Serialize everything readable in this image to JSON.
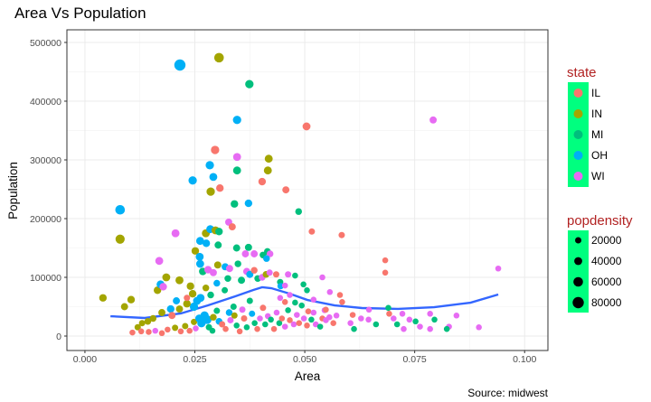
{
  "chart_data": {
    "type": "scatter",
    "title": "Area Vs Population",
    "caption": "Source: midwest",
    "xlabel": "Area",
    "ylabel": "Population",
    "xlim": [
      -0.0041,
      0.1053
    ],
    "ylim": [
      -24600,
      521500
    ],
    "xticks": [
      "0.000",
      "0.025",
      "0.050",
      "0.075",
      "0.100"
    ],
    "xtick_values": [
      0,
      0.025,
      0.05,
      0.075,
      0.1
    ],
    "yticks": [
      "0",
      "100000",
      "200000",
      "300000",
      "400000",
      "500000"
    ],
    "ytick_values": [
      0,
      100000,
      200000,
      300000,
      400000,
      500000
    ],
    "grid": true,
    "legend_position": "right",
    "color_legend": {
      "title": "state",
      "items": [
        {
          "label": "IL",
          "color": "#F8766D"
        },
        {
          "label": "IN",
          "color": "#A3A500"
        },
        {
          "label": "MI",
          "color": "#00BF7D"
        },
        {
          "label": "OH",
          "color": "#00B0F6"
        },
        {
          "label": "WI",
          "color": "#E76BF3"
        }
      ]
    },
    "size_legend": {
      "title": "popdensity",
      "items": [
        "20000",
        "40000",
        "60000",
        "80000"
      ],
      "values": [
        20000,
        40000,
        60000,
        80000
      ]
    },
    "legend_background": "#00FF7F",
    "smooth_color": "#3366FF",
    "smooth": [
      [
        0.0058,
        33800
      ],
      [
        0.0136,
        30800
      ],
      [
        0.0218,
        38500
      ],
      [
        0.028,
        52300
      ],
      [
        0.0342,
        67700
      ],
      [
        0.0383,
        78500
      ],
      [
        0.0403,
        83100
      ],
      [
        0.0424,
        81500
      ],
      [
        0.0465,
        72300
      ],
      [
        0.0506,
        61500
      ],
      [
        0.0568,
        52300
      ],
      [
        0.063,
        47700
      ],
      [
        0.0712,
        46200
      ],
      [
        0.0794,
        49200
      ],
      [
        0.0877,
        56900
      ],
      [
        0.094,
        70800
      ]
    ],
    "points_columns": [
      "area",
      "population",
      "state",
      "popdensity"
    ],
    "points": [
      [
        0.0216,
        461500,
        "OH",
        80000
      ],
      [
        0.0305,
        474000,
        "IN",
        60000
      ],
      [
        0.0374,
        429000,
        "MI",
        45000
      ],
      [
        0.0792,
        368000,
        "WI",
        30000
      ],
      [
        0.0346,
        368000,
        "OH",
        45000
      ],
      [
        0.0504,
        357000,
        "IL",
        40000
      ],
      [
        0.0296,
        317000,
        "IL",
        45000
      ],
      [
        0.0346,
        305000,
        "WI",
        40000
      ],
      [
        0.0418,
        302000,
        "IN",
        40000
      ],
      [
        0.0284,
        291000,
        "OH",
        45000
      ],
      [
        0.0346,
        282000,
        "MI",
        40000
      ],
      [
        0.0416,
        282000,
        "IN",
        40000
      ],
      [
        0.0292,
        271000,
        "OH",
        40000
      ],
      [
        0.0403,
        263000,
        "IL",
        35000
      ],
      [
        0.0245,
        265000,
        "OH",
        45000
      ],
      [
        0.0307,
        252000,
        "IL",
        35000
      ],
      [
        0.0457,
        249000,
        "IL",
        30000
      ],
      [
        0.0286,
        246000,
        "IN",
        45000
      ],
      [
        0.034,
        225000,
        "MI",
        35000
      ],
      [
        0.0372,
        226000,
        "OH",
        35000
      ],
      [
        0.0486,
        212000,
        "MI",
        25000
      ],
      [
        0.008,
        215000,
        "OH",
        60000
      ],
      [
        0.0206,
        175000,
        "WI",
        40000
      ],
      [
        0.0327,
        194000,
        "WI",
        30000
      ],
      [
        0.008,
        165000,
        "IN",
        55000
      ],
      [
        0.0516,
        178000,
        "IL",
        20000
      ],
      [
        0.0584,
        172000,
        "IL",
        20000
      ],
      [
        0.0169,
        128000,
        "WI",
        40000
      ],
      [
        0.0683,
        129000,
        "IL",
        15000
      ],
      [
        0.0683,
        108000,
        "IL",
        15000
      ],
      [
        0.094,
        115000,
        "WI",
        15000
      ],
      [
        0.0041,
        65000,
        "IN",
        35000
      ],
      [
        0.0275,
        175000,
        "IN",
        40000
      ],
      [
        0.0285,
        182000,
        "OH",
        40000
      ],
      [
        0.0297,
        180000,
        "IN",
        40000
      ],
      [
        0.0305,
        178000,
        "MI",
        35000
      ],
      [
        0.0335,
        186000,
        "IL",
        30000
      ],
      [
        0.0262,
        162000,
        "OH",
        40000
      ],
      [
        0.0276,
        158000,
        "OH",
        35000
      ],
      [
        0.0303,
        155000,
        "MI",
        30000
      ],
      [
        0.0345,
        150000,
        "MI",
        30000
      ],
      [
        0.0372,
        151000,
        "MI",
        30000
      ],
      [
        0.0365,
        140000,
        "WI",
        30000
      ],
      [
        0.0385,
        140000,
        "WI",
        30000
      ],
      [
        0.0405,
        138000,
        "MI",
        25000
      ],
      [
        0.0415,
        144000,
        "MI",
        25000
      ],
      [
        0.0421,
        140000,
        "WI",
        25000
      ],
      [
        0.0413,
        132000,
        "OH",
        25000
      ],
      [
        0.0251,
        145000,
        "IN",
        35000
      ],
      [
        0.0261,
        135000,
        "OH",
        40000
      ],
      [
        0.0262,
        123000,
        "OH",
        40000
      ],
      [
        0.0268,
        110000,
        "MI",
        35000
      ],
      [
        0.028,
        113000,
        "WI",
        35000
      ],
      [
        0.0292,
        108000,
        "WI",
        30000
      ],
      [
        0.0302,
        121000,
        "IN",
        30000
      ],
      [
        0.0319,
        118000,
        "OH",
        30000
      ],
      [
        0.0329,
        115000,
        "WI",
        30000
      ],
      [
        0.0348,
        123000,
        "MI",
        25000
      ],
      [
        0.0368,
        110000,
        "WI",
        30000
      ],
      [
        0.0375,
        105000,
        "OH",
        30000
      ],
      [
        0.0356,
        95000,
        "MI",
        30000
      ],
      [
        0.0385,
        112000,
        "IL",
        25000
      ],
      [
        0.0393,
        98000,
        "MI",
        25000
      ],
      [
        0.0403,
        100000,
        "WI",
        25000
      ],
      [
        0.0412,
        105000,
        "IN",
        25000
      ],
      [
        0.042,
        108000,
        "WI",
        20000
      ],
      [
        0.0435,
        105000,
        "IL",
        20000
      ],
      [
        0.0444,
        92000,
        "MI",
        20000
      ],
      [
        0.0445,
        85000,
        "OH",
        20000
      ],
      [
        0.0462,
        105000,
        "WI",
        20000
      ],
      [
        0.0478,
        103000,
        "MI",
        15000
      ],
      [
        0.0185,
        100000,
        "IN",
        40000
      ],
      [
        0.0165,
        78000,
        "IN",
        35000
      ],
      [
        0.0172,
        88000,
        "OH",
        40000
      ],
      [
        0.0178,
        84000,
        "WI",
        35000
      ],
      [
        0.0215,
        95000,
        "IN",
        40000
      ],
      [
        0.024,
        85000,
        "IN",
        35000
      ],
      [
        0.0245,
        72000,
        "IN",
        35000
      ],
      [
        0.0255,
        60000,
        "OH",
        40000
      ],
      [
        0.0263,
        65000,
        "OH",
        40000
      ],
      [
        0.0248,
        50000,
        "OH",
        45000
      ],
      [
        0.0232,
        55000,
        "IN",
        35000
      ],
      [
        0.0215,
        46000,
        "IN",
        30000
      ],
      [
        0.0195,
        46000,
        "OH",
        35000
      ],
      [
        0.0175,
        40000,
        "IN",
        30000
      ],
      [
        0.0198,
        35000,
        "IL",
        30000
      ],
      [
        0.0155,
        30000,
        "IN",
        25000
      ],
      [
        0.0143,
        25000,
        "IN",
        25000
      ],
      [
        0.013,
        22000,
        "IN",
        20000
      ],
      [
        0.012,
        15000,
        "IN",
        20000
      ],
      [
        0.0128,
        8000,
        "IL",
        15000
      ],
      [
        0.0108,
        6000,
        "IL",
        15000
      ],
      [
        0.0145,
        7000,
        "IL",
        15000
      ],
      [
        0.016,
        9000,
        "WI",
        15000
      ],
      [
        0.0175,
        5000,
        "IL",
        15000
      ],
      [
        0.0188,
        11000,
        "IL",
        15000
      ],
      [
        0.0205,
        14000,
        "IN",
        20000
      ],
      [
        0.0218,
        8000,
        "IL",
        15000
      ],
      [
        0.0228,
        17000,
        "IN",
        20000
      ],
      [
        0.0238,
        9000,
        "IL",
        15000
      ],
      [
        0.0248,
        24000,
        "IN",
        20000
      ],
      [
        0.0252,
        13000,
        "WI",
        15000
      ],
      [
        0.026,
        30000,
        "OH",
        40000
      ],
      [
        0.0265,
        22000,
        "OH",
        45000
      ],
      [
        0.0272,
        35000,
        "OH",
        45000
      ],
      [
        0.0278,
        28000,
        "OH",
        50000
      ],
      [
        0.0282,
        15000,
        "MI",
        20000
      ],
      [
        0.029,
        9000,
        "MI",
        15000
      ],
      [
        0.0292,
        32000,
        "IN",
        25000
      ],
      [
        0.03,
        43000,
        "MI",
        20000
      ],
      [
        0.0305,
        25000,
        "OH",
        25000
      ],
      [
        0.0312,
        20000,
        "IL",
        20000
      ],
      [
        0.032,
        12000,
        "IL",
        15000
      ],
      [
        0.0328,
        40000,
        "OH",
        25000
      ],
      [
        0.0331,
        27000,
        "WI",
        20000
      ],
      [
        0.0338,
        50000,
        "MI",
        20000
      ],
      [
        0.034,
        35000,
        "IN",
        20000
      ],
      [
        0.0345,
        18000,
        "MI",
        15000
      ],
      [
        0.0352,
        8000,
        "IL",
        15000
      ],
      [
        0.0358,
        45000,
        "WI",
        20000
      ],
      [
        0.0362,
        30000,
        "IL",
        20000
      ],
      [
        0.0368,
        15000,
        "MI",
        15000
      ],
      [
        0.0375,
        60000,
        "MI",
        20000
      ],
      [
        0.038,
        38000,
        "OH",
        20000
      ],
      [
        0.0386,
        22000,
        "MI",
        15000
      ],
      [
        0.0392,
        12000,
        "IL",
        15000
      ],
      [
        0.0398,
        30000,
        "WI",
        15000
      ],
      [
        0.0405,
        48000,
        "IL",
        20000
      ],
      [
        0.041,
        20000,
        "MI",
        15000
      ],
      [
        0.0416,
        34000,
        "WI",
        15000
      ],
      [
        0.0423,
        28000,
        "MI",
        15000
      ],
      [
        0.043,
        12000,
        "IL",
        15000
      ],
      [
        0.0436,
        40000,
        "WI",
        15000
      ],
      [
        0.0442,
        22000,
        "MI",
        15000
      ],
      [
        0.0448,
        30000,
        "IL",
        15000
      ],
      [
        0.0455,
        16000,
        "WI",
        15000
      ],
      [
        0.0462,
        44000,
        "MI",
        15000
      ],
      [
        0.0466,
        27000,
        "IL",
        15000
      ],
      [
        0.0475,
        20000,
        "WI",
        15000
      ],
      [
        0.0482,
        36000,
        "WI",
        15000
      ],
      [
        0.0487,
        22000,
        "IL",
        15000
      ],
      [
        0.0493,
        52000,
        "MI",
        15000
      ],
      [
        0.0498,
        30000,
        "WI",
        15000
      ],
      [
        0.0505,
        18000,
        "IL",
        15000
      ],
      [
        0.0508,
        42000,
        "IL",
        15000
      ],
      [
        0.0515,
        28000,
        "MI",
        15000
      ],
      [
        0.052,
        40000,
        "WI",
        15000
      ],
      [
        0.0525,
        20000,
        "WI",
        15000
      ],
      [
        0.0535,
        16000,
        "MI",
        15000
      ],
      [
        0.054,
        30000,
        "IL",
        15000
      ],
      [
        0.0545,
        44000,
        "WI",
        15000
      ],
      [
        0.0548,
        27000,
        "WI",
        15000
      ],
      [
        0.0556,
        32000,
        "WI",
        15000
      ],
      [
        0.0565,
        22000,
        "IL",
        15000
      ],
      [
        0.0572,
        35000,
        "WI",
        15000
      ],
      [
        0.058,
        70000,
        "IL",
        15000
      ],
      [
        0.0585,
        58000,
        "IL",
        15000
      ],
      [
        0.0548,
        45000,
        "IL",
        15000
      ],
      [
        0.054,
        100000,
        "WI",
        15000
      ],
      [
        0.0557,
        75000,
        "WI",
        15000
      ],
      [
        0.0505,
        78000,
        "MI",
        15000
      ],
      [
        0.052,
        62000,
        "WI",
        15000
      ],
      [
        0.0604,
        22000,
        "WI",
        15000
      ],
      [
        0.0612,
        12000,
        "MI",
        15000
      ],
      [
        0.0628,
        30000,
        "WI",
        15000
      ],
      [
        0.0645,
        28000,
        "WI",
        15000
      ],
      [
        0.0662,
        20000,
        "MI",
        15000
      ],
      [
        0.069,
        48000,
        "MI",
        15000
      ],
      [
        0.0692,
        38000,
        "IL",
        15000
      ],
      [
        0.0702,
        30000,
        "WI",
        15000
      ],
      [
        0.071,
        20000,
        "MI",
        15000
      ],
      [
        0.0722,
        38000,
        "WI",
        15000
      ],
      [
        0.0738,
        28000,
        "WI",
        15000
      ],
      [
        0.0752,
        25000,
        "MI",
        15000
      ],
      [
        0.0762,
        16000,
        "WI",
        15000
      ],
      [
        0.0785,
        12000,
        "WI",
        15000
      ],
      [
        0.0785,
        38000,
        "WI",
        15000
      ],
      [
        0.0795,
        28000,
        "MI",
        15000
      ],
      [
        0.0828,
        16000,
        "WI",
        15000
      ],
      [
        0.0823,
        12000,
        "MI",
        15000
      ],
      [
        0.0845,
        35000,
        "WI",
        15000
      ],
      [
        0.0725,
        12000,
        "WI",
        15000
      ],
      [
        0.0646,
        45000,
        "WI",
        15000
      ],
      [
        0.0609,
        36000,
        "IL",
        15000
      ],
      [
        0.0896,
        15000,
        "WI",
        15000
      ],
      [
        0.0455,
        86000,
        "WI",
        15000
      ],
      [
        0.0466,
        70000,
        "WI",
        15000
      ],
      [
        0.0478,
        57000,
        "MI",
        15000
      ],
      [
        0.0497,
        88000,
        "MI",
        15000
      ],
      [
        0.0455,
        58000,
        "IL",
        15000
      ],
      [
        0.0444,
        65000,
        "WI",
        15000
      ],
      [
        0.0318,
        78000,
        "MI",
        20000
      ],
      [
        0.03,
        90000,
        "OH",
        25000
      ],
      [
        0.0325,
        98000,
        "MI",
        25000
      ],
      [
        0.0275,
        82000,
        "IN",
        25000
      ],
      [
        0.0286,
        70000,
        "MI",
        25000
      ],
      [
        0.0232,
        65000,
        "IL",
        20000
      ],
      [
        0.0208,
        60000,
        "OH",
        30000
      ],
      [
        0.0105,
        62000,
        "IN",
        35000
      ],
      [
        0.009,
        50000,
        "IN",
        30000
      ]
    ]
  }
}
